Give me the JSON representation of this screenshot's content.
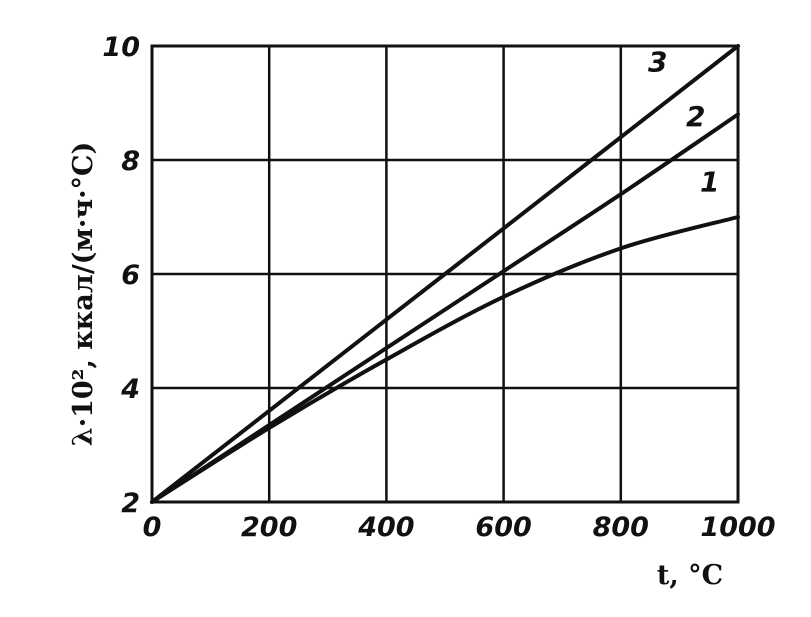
{
  "chart_data": {
    "type": "line",
    "xlabel": "t, °C",
    "ylabel": "λ·10², ккал/(м·ч·°С)",
    "xlim": [
      0,
      1000
    ],
    "ylim": [
      2,
      10
    ],
    "xticks": [
      "0",
      "200",
      "400",
      "600",
      "800",
      "1000"
    ],
    "yticks": [
      "2",
      "4",
      "6",
      "8",
      "10"
    ],
    "grid": true,
    "series": [
      {
        "name": "1",
        "x": [
          0,
          200,
          400,
          600,
          800,
          1000
        ],
        "y": [
          2.0,
          3.3,
          4.5,
          5.6,
          6.45,
          7.0
        ]
      },
      {
        "name": "2",
        "x": [
          0,
          200,
          400,
          600,
          800,
          1000
        ],
        "y": [
          2.0,
          3.35,
          4.7,
          6.05,
          7.4,
          8.8
        ]
      },
      {
        "name": "3",
        "x": [
          0,
          200,
          400,
          600,
          800,
          1000
        ],
        "y": [
          2.0,
          3.6,
          5.2,
          6.8,
          8.4,
          10.0
        ]
      }
    ]
  }
}
